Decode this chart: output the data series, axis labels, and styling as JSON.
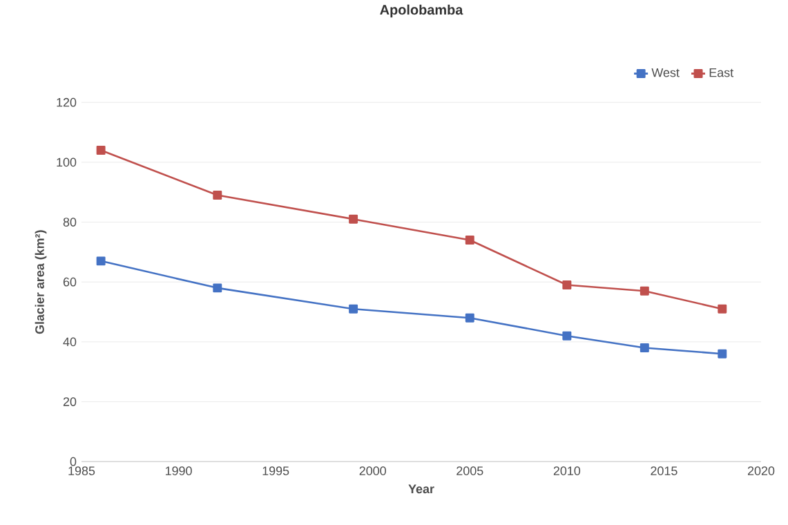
{
  "chart_data": {
    "type": "line",
    "title": "Apolobamba",
    "xlabel": "Year",
    "ylabel": "Glacier area (km²)",
    "x": [
      1986,
      1992,
      1999,
      2005,
      2010,
      2014,
      2018
    ],
    "series": [
      {
        "name": "West",
        "color": "#4472c4",
        "values": [
          67,
          58,
          51,
          48,
          42,
          38,
          36
        ]
      },
      {
        "name": "East",
        "color": "#c0504d",
        "values": [
          104,
          89,
          81,
          74,
          59,
          57,
          51
        ]
      }
    ],
    "xlim": [
      1985,
      2020
    ],
    "xticks": [
      1985,
      1990,
      1995,
      2000,
      2005,
      2010,
      2015,
      2020
    ],
    "ylim": [
      0,
      120
    ],
    "yticks": [
      0,
      20,
      40,
      60,
      80,
      100,
      120
    ],
    "grid": "y",
    "legend": "top right",
    "marker": "square",
    "line_style": "solid"
  }
}
